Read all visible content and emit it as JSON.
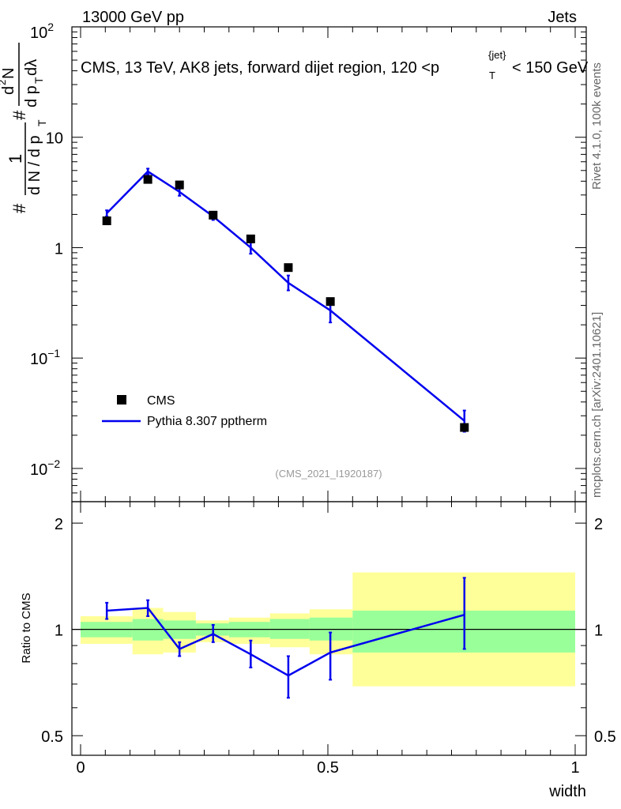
{
  "header": {
    "left": "13000 GeV pp",
    "right": "Jets"
  },
  "ylabel_main": {
    "prefix": "#",
    "one": "1",
    "denom_a": "d N / d p",
    "sub_t": "T",
    "hash2": "#",
    "num_b": "d",
    "num_b_sup": "2",
    "num_b2": "N",
    "den_b": "d p",
    "den_b_tail": " dλ"
  },
  "side_labels": {
    "rivet": "Rivet 4.1.0,  100k events",
    "mcplots": "mcplots.cern.ch [arXiv:2401.10621]"
  },
  "analysis_id": "(CMS_2021_I1920187)",
  "chart_data": [
    {
      "type": "scatter",
      "title": "CMS, 13 TeV, AK8 jets, forward dijet region, 120 <p",
      "title_sub": "T",
      "title_sup": "{jet}",
      "title_end": "< 150 GeV",
      "yscale": "log",
      "ylim": [
        0.005,
        100
      ],
      "xlim": [
        -0.02,
        1.0
      ],
      "ytick_labels": [
        {
          "value": 100,
          "base": "10",
          "exp": "2"
        },
        {
          "value": 10,
          "base": "10",
          "exp": ""
        },
        {
          "value": 1,
          "base": "1",
          "exp": ""
        },
        {
          "value": 0.1,
          "base": "10",
          "exp": "−1"
        },
        {
          "value": 0.01,
          "base": "10",
          "exp": "−2"
        }
      ],
      "legend": {
        "placement": "lower-left",
        "entries": [
          "CMS",
          "Pythia 8.307 pptherm"
        ]
      },
      "series": [
        {
          "name": "CMS",
          "style": "markers",
          "color": "#000000",
          "x": [
            0.053,
            0.136,
            0.2,
            0.268,
            0.344,
            0.42,
            0.505,
            0.776
          ],
          "y": [
            1.75,
            4.15,
            3.7,
            1.97,
            1.2,
            0.66,
            0.325,
            0.0235
          ]
        },
        {
          "name": "Pythia 8.307 pptherm",
          "style": "line",
          "color": "#0000ee",
          "x": [
            0.053,
            0.136,
            0.2,
            0.268,
            0.344,
            0.42,
            0.505,
            0.776
          ],
          "y": [
            2.05,
            4.9,
            3.2,
            1.92,
            1.0,
            0.48,
            0.27,
            0.027
          ],
          "yerr_low": [
            1.92,
            4.6,
            2.95,
            1.78,
            0.88,
            0.41,
            0.21,
            0.0215
          ],
          "yerr_high": [
            2.18,
            5.2,
            3.45,
            2.06,
            1.12,
            0.56,
            0.33,
            0.0335
          ]
        }
      ]
    },
    {
      "type": "line",
      "ylabel": "Ratio to CMS",
      "xlabel": "width",
      "yscale": "log",
      "ylim": [
        0.44,
        2.3
      ],
      "xlim": [
        -0.02,
        1.0
      ],
      "xtick_labels": [
        {
          "value": 0,
          "label": "0"
        },
        {
          "value": 0.5,
          "label": "0.5"
        },
        {
          "value": 1,
          "label": "1"
        }
      ],
      "ytick_labels": [
        {
          "value": 0.5,
          "label": "0.5"
        },
        {
          "value": 1,
          "label": "1"
        },
        {
          "value": 2,
          "label": "2"
        }
      ],
      "bands": [
        {
          "x0": 0.0,
          "x1": 0.105,
          "g_lo": 0.95,
          "g_hi": 1.05,
          "y_lo": 0.91,
          "y_hi": 1.09
        },
        {
          "x0": 0.105,
          "x1": 0.167,
          "g_lo": 0.93,
          "g_hi": 1.07,
          "y_lo": 0.85,
          "y_hi": 1.15
        },
        {
          "x0": 0.167,
          "x1": 0.233,
          "g_lo": 0.94,
          "g_hi": 1.06,
          "y_lo": 0.86,
          "y_hi": 1.12
        },
        {
          "x0": 0.233,
          "x1": 0.3,
          "g_lo": 0.96,
          "g_hi": 1.04,
          "y_lo": 0.92,
          "y_hi": 1.06
        },
        {
          "x0": 0.3,
          "x1": 0.383,
          "g_lo": 0.95,
          "g_hi": 1.05,
          "y_lo": 0.91,
          "y_hi": 1.08
        },
        {
          "x0": 0.383,
          "x1": 0.463,
          "g_lo": 0.94,
          "g_hi": 1.07,
          "y_lo": 0.89,
          "y_hi": 1.11
        },
        {
          "x0": 0.463,
          "x1": 0.55,
          "g_lo": 0.93,
          "g_hi": 1.08,
          "y_lo": 0.85,
          "y_hi": 1.14
        },
        {
          "x0": 0.55,
          "x1": 1.0,
          "g_lo": 0.86,
          "g_hi": 1.13,
          "y_lo": 0.69,
          "y_hi": 1.45
        }
      ],
      "series": [
        {
          "name": "Pythia 8.307 pptherm / CMS",
          "color": "#0000ee",
          "x": [
            0.053,
            0.136,
            0.2,
            0.268,
            0.344,
            0.42,
            0.505,
            0.776
          ],
          "y": [
            1.13,
            1.15,
            0.88,
            0.97,
            0.85,
            0.74,
            0.86,
            1.1
          ],
          "yerr_low": [
            1.07,
            1.09,
            0.84,
            0.92,
            0.78,
            0.64,
            0.72,
            0.88
          ],
          "yerr_high": [
            1.19,
            1.21,
            0.92,
            1.03,
            0.93,
            0.84,
            0.98,
            1.4
          ]
        }
      ]
    }
  ]
}
